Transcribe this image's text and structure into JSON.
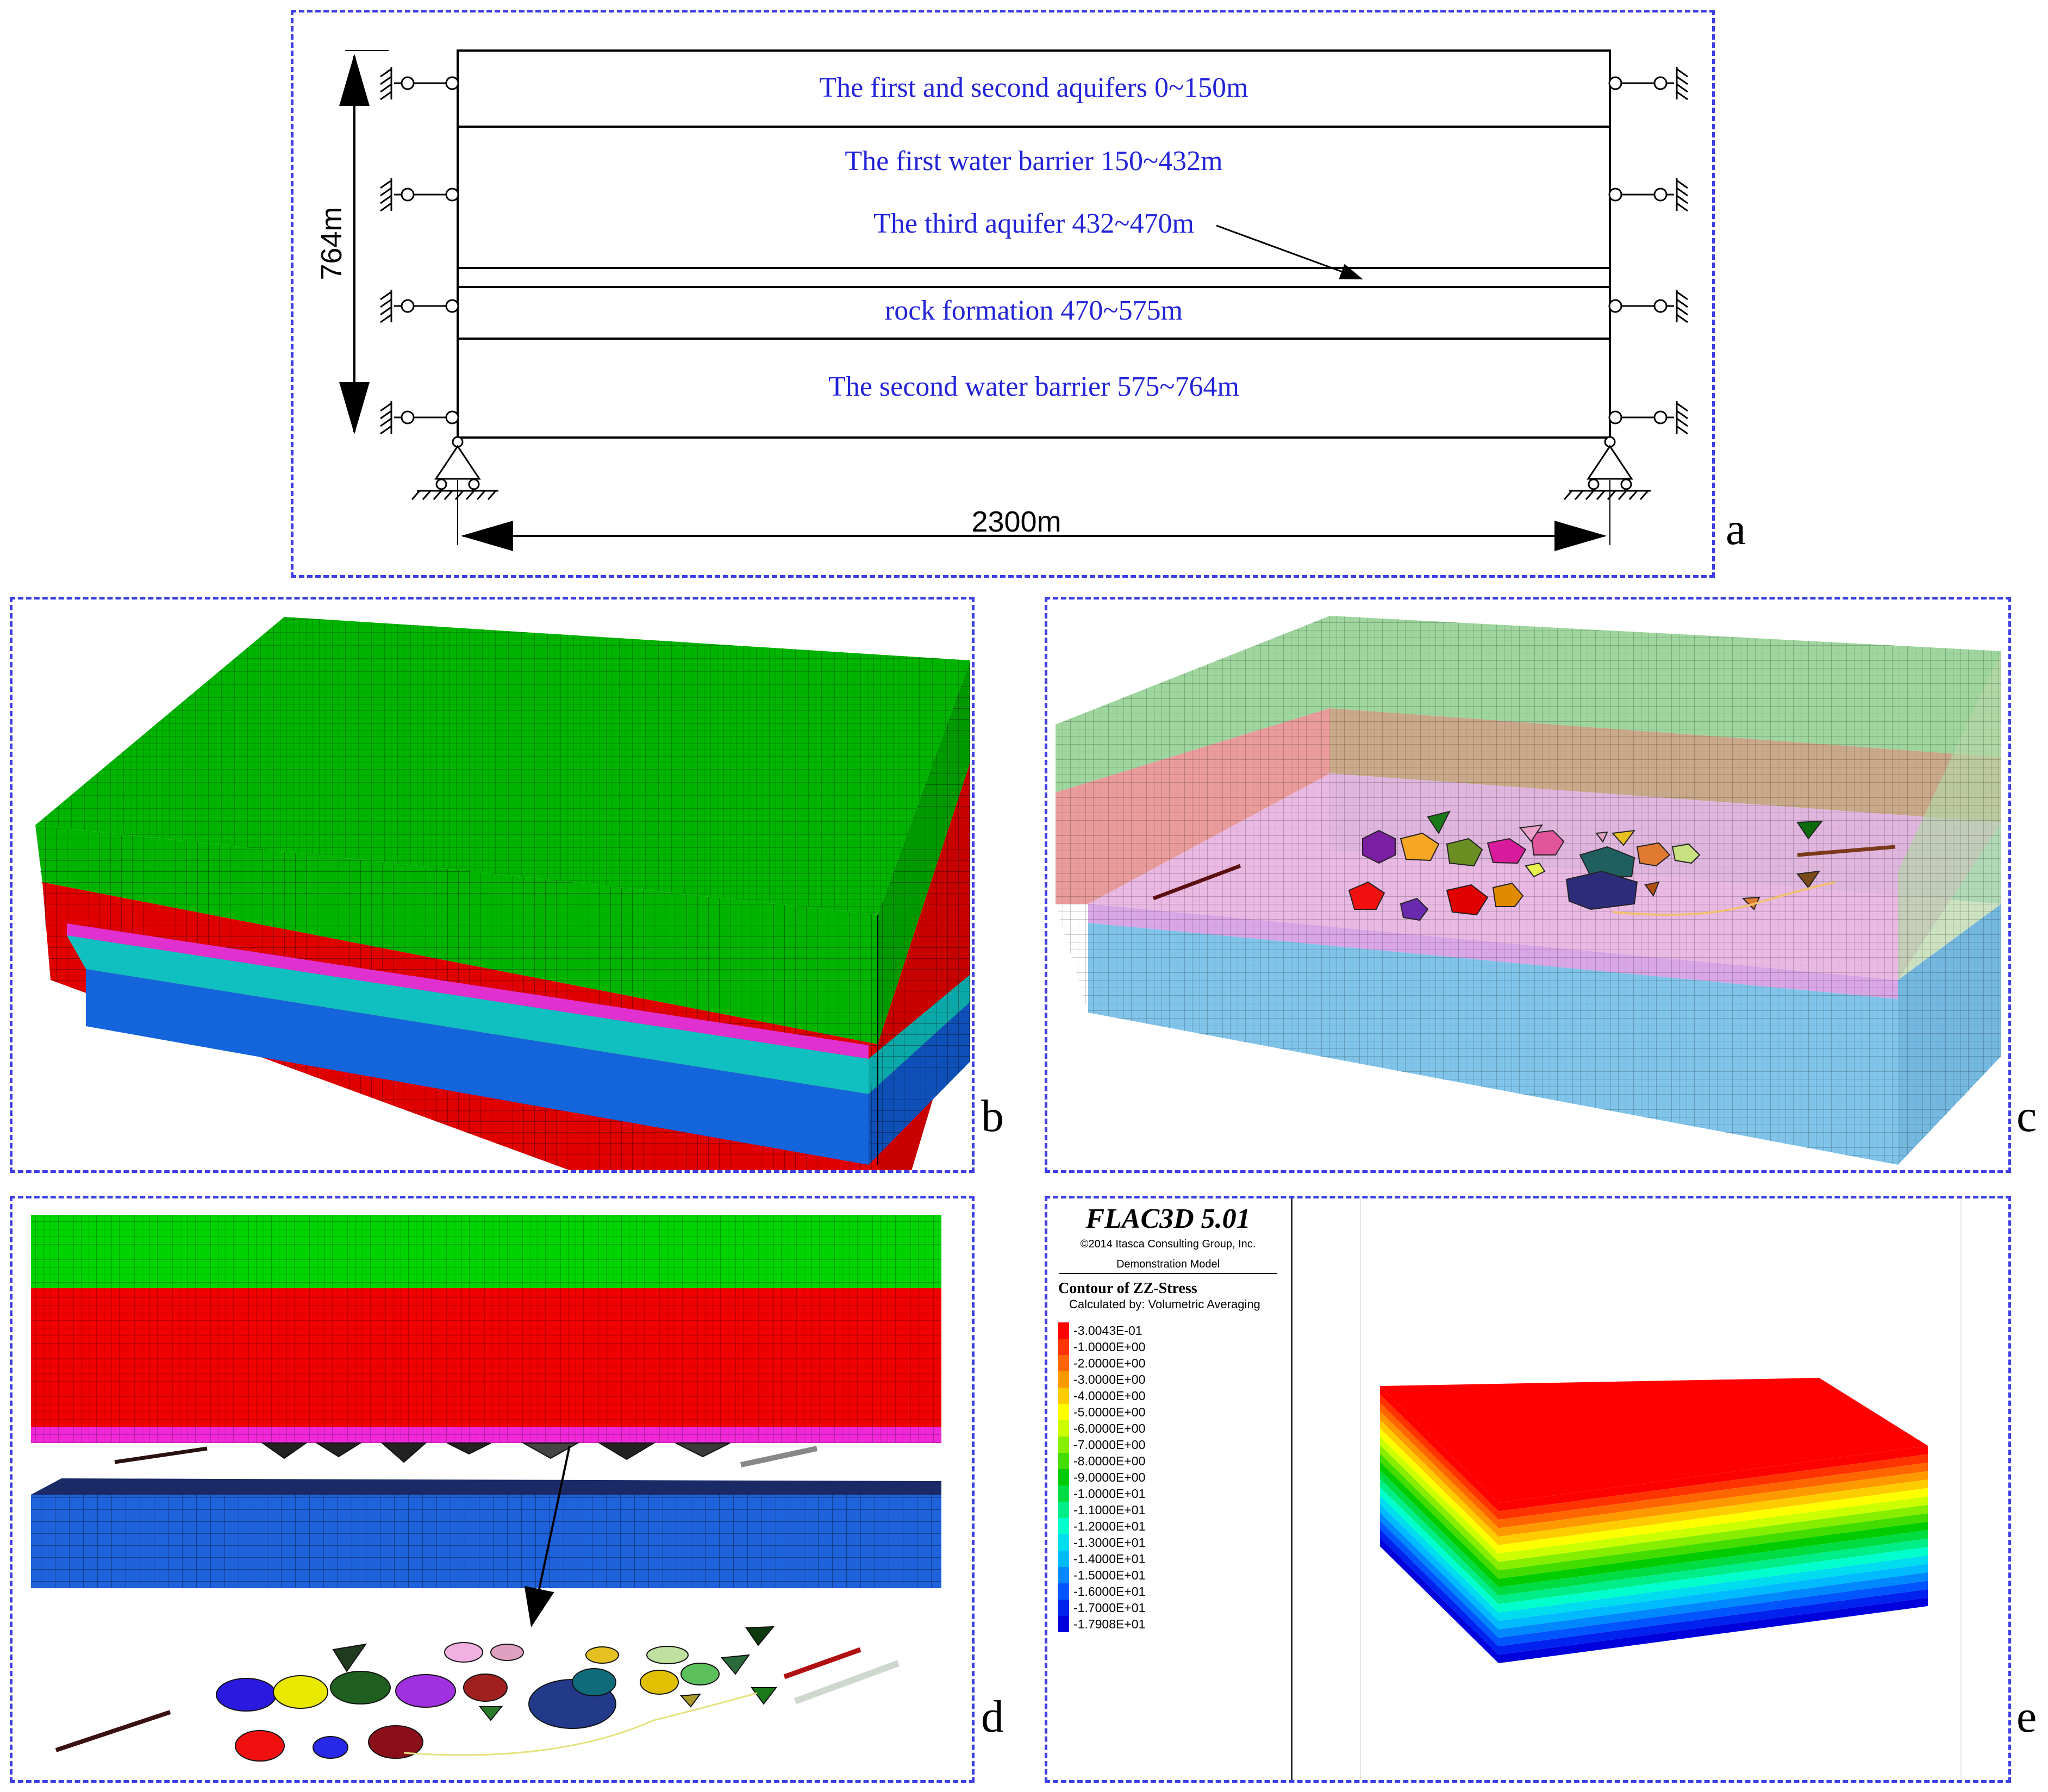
{
  "panel_labels": [
    "a",
    "b",
    "c",
    "d",
    "e"
  ],
  "panel_a": {
    "layers": [
      "The first and second aquifers 0~150m",
      "The first water barrier 150~432m",
      "The third aquifer 432~470m",
      "rock formation 470~575m",
      "The second water barrier  575~764m"
    ],
    "height_label": "764m",
    "width_label": "2300m",
    "text_color": "#2323d8"
  },
  "panel_b": {
    "layer_colors": [
      "#00b400",
      "#e00000",
      "#e030d0",
      "#10c0c0",
      "#1464dc"
    ]
  },
  "panel_c": {
    "layer_colors": [
      "#9ed69e",
      "#c9a98a",
      "#9ee0d8",
      "#e7b1e0",
      "#80c4ea"
    ]
  },
  "panel_d": {
    "layer_colors": [
      "#00d400",
      "#f00000",
      "#f028d8",
      "#1e62dc"
    ]
  },
  "panel_e": {
    "software": "FLAC3D 5.01",
    "copyright": "©2014 Itasca Consulting Group, Inc.",
    "model_name": "Demonstration Model",
    "contour_title": "Contour of ZZ-Stress",
    "contour_subtitle": "Calculated by: Volumetric Averaging",
    "legend": [
      {
        "label": "-3.0043E-01",
        "color": "#ff0000"
      },
      {
        "label": "-1.0000E+00",
        "color": "#ff3300"
      },
      {
        "label": "-2.0000E+00",
        "color": "#ff6600"
      },
      {
        "label": "-3.0000E+00",
        "color": "#ff9900"
      },
      {
        "label": "-4.0000E+00",
        "color": "#ffcc00"
      },
      {
        "label": "-5.0000E+00",
        "color": "#ffff00"
      },
      {
        "label": "-6.0000E+00",
        "color": "#ccff00"
      },
      {
        "label": "-7.0000E+00",
        "color": "#88ee00"
      },
      {
        "label": "-8.0000E+00",
        "color": "#44dd00"
      },
      {
        "label": "-9.0000E+00",
        "color": "#00cc00"
      },
      {
        "label": "-1.0000E+01",
        "color": "#00dd44"
      },
      {
        "label": "-1.1000E+01",
        "color": "#00ee88"
      },
      {
        "label": "-1.2000E+01",
        "color": "#00ffcc"
      },
      {
        "label": "-1.3000E+01",
        "color": "#00ddee"
      },
      {
        "label": "-1.4000E+01",
        "color": "#00bbff"
      },
      {
        "label": "-1.5000E+01",
        "color": "#0088ff"
      },
      {
        "label": "-1.6000E+01",
        "color": "#0055ff"
      },
      {
        "label": "-1.7000E+01",
        "color": "#0022ee"
      },
      {
        "label": "-1.7908E+01",
        "color": "#0000dd"
      }
    ]
  }
}
